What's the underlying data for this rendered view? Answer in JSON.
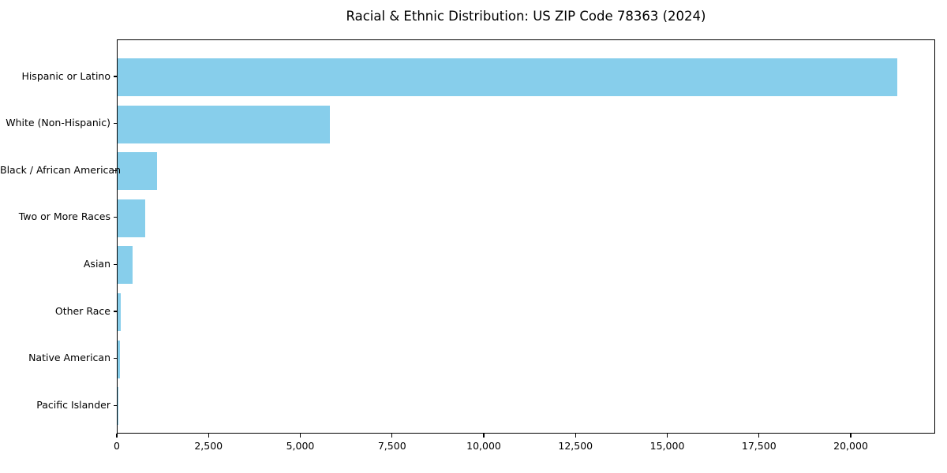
{
  "chart_data": {
    "type": "bar",
    "orientation": "horizontal",
    "title": "Racial & Ethnic Distribution: US ZIP Code 78363 (2024)",
    "categories": [
      "Hispanic or Latino",
      "White (Non-Hispanic)",
      "Black / African American",
      "Two or More Races",
      "Asian",
      "Other Race",
      "Native American",
      "Pacific Islander"
    ],
    "values": [
      21250,
      5780,
      1075,
      745,
      410,
      90,
      75,
      8
    ],
    "bar_color": "#87CEEB",
    "xlabel": "",
    "ylabel": "",
    "xlim": [
      0,
      22300
    ],
    "xticks": [
      {
        "value": 0,
        "label": "0"
      },
      {
        "value": 2500,
        "label": "2,500"
      },
      {
        "value": 5000,
        "label": "5,000"
      },
      {
        "value": 7500,
        "label": "7,500"
      },
      {
        "value": 10000,
        "label": "10,000"
      },
      {
        "value": 12500,
        "label": "12,500"
      },
      {
        "value": 15000,
        "label": "15,000"
      },
      {
        "value": 17500,
        "label": "17,500"
      },
      {
        "value": 20000,
        "label": "20,000"
      }
    ],
    "grid": false,
    "legend": null
  }
}
